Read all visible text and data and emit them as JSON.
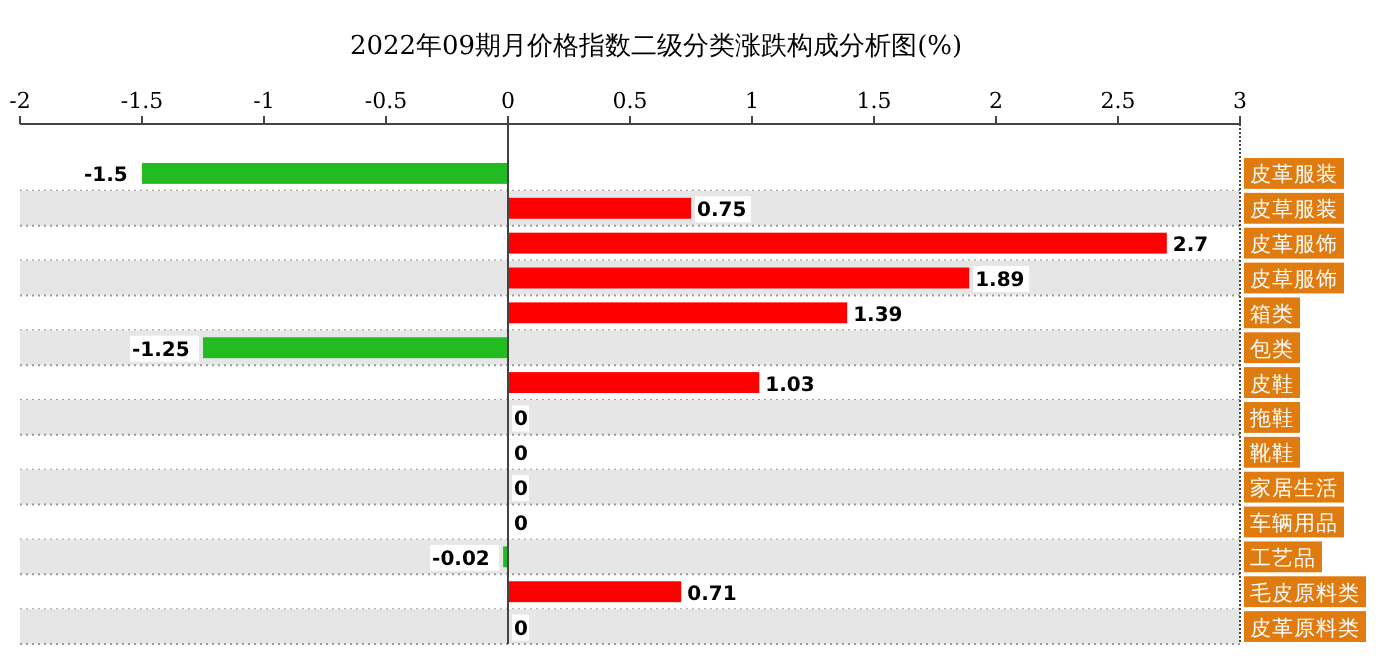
{
  "chart_data": {
    "type": "bar",
    "orientation": "horizontal",
    "title": "2022年09期月价格指数二级分类涨跌构成分析图(%)",
    "categories": [
      "皮革服装",
      "皮草服装",
      "皮革服饰",
      "皮草服饰",
      "箱类",
      "包类",
      "皮鞋",
      "拖鞋",
      "靴鞋",
      "家居生活",
      "车辆用品",
      "工艺品",
      "毛皮原料类",
      "皮革原料类"
    ],
    "values": [
      -1.5,
      0.75,
      2.7,
      1.89,
      1.39,
      -1.25,
      1.03,
      0,
      0,
      0,
      0,
      -0.02,
      0.71,
      0
    ],
    "colors": [
      "#22bb22",
      "#ff0000",
      "#ff0000",
      "#ff0000",
      "#ff0000",
      "#22bb22",
      "#ff0000",
      "#ff0000",
      "#ff0000",
      "#ff0000",
      "#ff0000",
      "#22bb22",
      "#ff0000",
      "#ff0000"
    ],
    "xlim": [
      -2,
      3
    ],
    "xticks": [
      -2,
      -1.5,
      -1,
      -0.5,
      0,
      0.5,
      1,
      1.5,
      2,
      2.5,
      3
    ],
    "data_labels": true
  }
}
